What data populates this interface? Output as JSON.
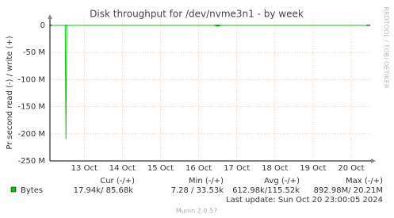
{
  "chart_data": {
    "type": "line",
    "title": "Disk throughput for /dev/nvme3n1 - by week",
    "y_label": "Pr second read (-) / write (+)",
    "side_text": "RRDTOOL / TOBI OETIKER",
    "x": [
      12.15,
      12.5,
      12.52,
      12.54,
      12.6,
      16.4,
      16.5,
      16.6,
      17.9,
      18.2,
      20.4
    ],
    "series": [
      {
        "name": "Bytes",
        "color": "#00cc00",
        "values": [
          0,
          0,
          -210000000,
          0,
          0,
          0,
          -1500000,
          0,
          0,
          0,
          0
        ]
      }
    ],
    "xlim": [
      12.1,
      20.5
    ],
    "xticks": [
      {
        "value": 13,
        "label": "13 Oct"
      },
      {
        "value": 14,
        "label": "14 Oct"
      },
      {
        "value": 15,
        "label": "15 Oct"
      },
      {
        "value": 16,
        "label": "16 Oct"
      },
      {
        "value": 17,
        "label": "17 Oct"
      },
      {
        "value": 18,
        "label": "18 Oct"
      },
      {
        "value": 19,
        "label": "19 Oct"
      },
      {
        "value": 20,
        "label": "20 Oct"
      }
    ],
    "ylim": [
      -250000000,
      0
    ],
    "yticks": [
      0,
      {
        "value": -50000000,
        "label": "-50 M"
      },
      {
        "value": -100000000,
        "label": "-100 M"
      },
      {
        "value": -150000000,
        "label": "-150 M"
      },
      {
        "value": -200000000,
        "label": "-200 M"
      },
      {
        "value": -250000000,
        "label": "-250 M"
      }
    ],
    "grid": true,
    "stat_headers": [
      "Cur (-/+)",
      "Min (-/+)",
      "Avg (-/+)",
      "Max (-/+)"
    ],
    "stats": [
      "17.94k/ 85.68k",
      "7.28 / 33.53k",
      "612.98k/115.52k",
      "892.98M/ 20.21M"
    ],
    "last_update": "Last update: Sun Oct 20 23:00:05 2024",
    "footer": "Munin 2.0.57"
  }
}
